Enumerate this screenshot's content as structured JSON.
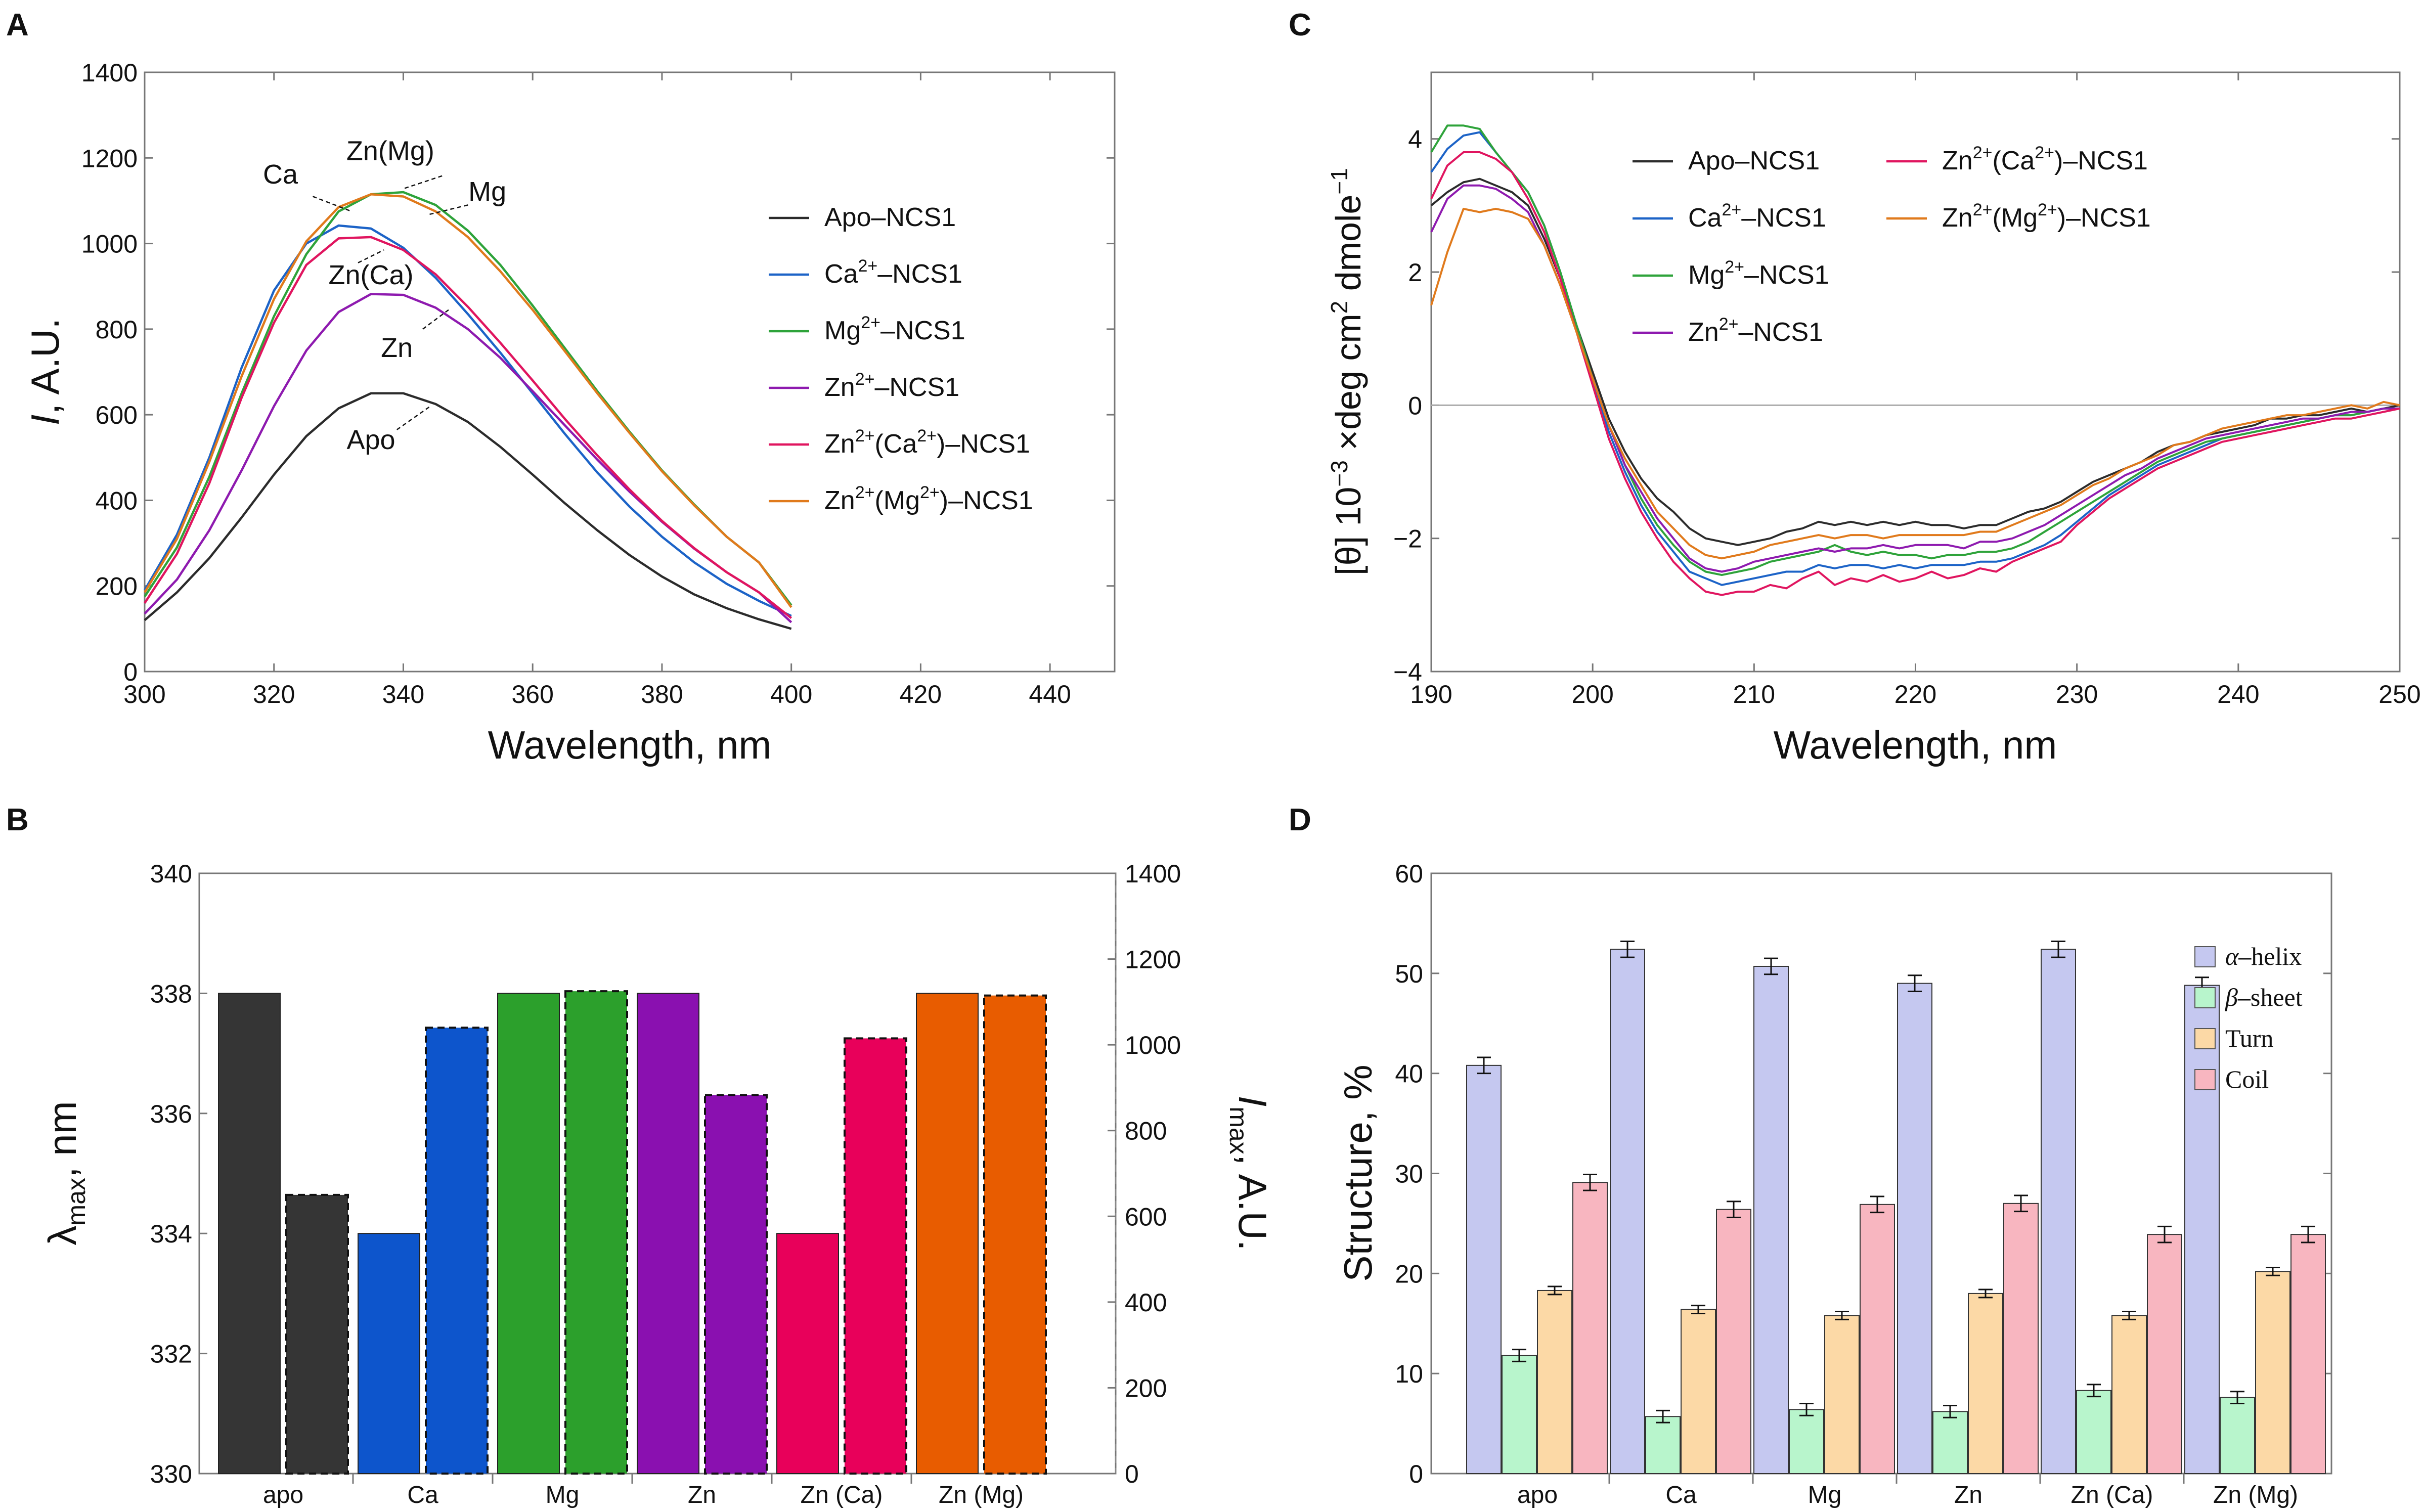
{
  "colors": {
    "apo": "#2b2b2b",
    "ca": "#1c63c7",
    "mg": "#2ea33a",
    "zn": "#8e1aaf",
    "zn_ca": "#e0155f",
    "zn_mg": "#e07a1c",
    "bar_apo": "#353535",
    "bar_ca": "#0d55cc",
    "bar_mg": "#2ca02c",
    "bar_zn": "#8a10b0",
    "bar_zn_ca": "#e8005a",
    "bar_zn_mg": "#e85c00",
    "helix": "#c5c8f0",
    "sheet": "#b8f5cc",
    "turn": "#fcd9a6",
    "coil": "#f8b6c0"
  },
  "chart_data": [
    {
      "panel": "A",
      "type": "line",
      "xlabel": "Wavelength, nm",
      "ylabel_italic": "I",
      "ylabel_rest": ", A.U.",
      "xlim": [
        300,
        450
      ],
      "ylim": [
        0,
        1400
      ],
      "xticks": [
        "300",
        "320",
        "340",
        "360",
        "380",
        "400",
        "420",
        "440"
      ],
      "yticks": [
        "0",
        "200",
        "400",
        "600",
        "800",
        "1000",
        "1200",
        "1400"
      ],
      "xtick_values": [
        300,
        320,
        340,
        360,
        380,
        400,
        420,
        440
      ],
      "ytick_values": [
        0,
        200,
        400,
        600,
        800,
        1000,
        1200,
        1400
      ],
      "x": [
        300,
        305,
        310,
        315,
        320,
        325,
        330,
        335,
        340,
        345,
        350,
        355,
        360,
        365,
        370,
        375,
        380,
        385,
        390,
        395,
        400
      ],
      "series": [
        {
          "key": "apo",
          "legend_main": "Apo–NCS1",
          "values": [
            120,
            185,
            265,
            360,
            460,
            550,
            615,
            650,
            650,
            625,
            583,
            525,
            460,
            393,
            330,
            272,
            222,
            180,
            148,
            122,
            100
          ]
        },
        {
          "key": "ca",
          "legend_pre": "Ca",
          "legend_sup": "2+",
          "legend_post": "–NCS1",
          "values": [
            190,
            320,
            500,
            710,
            890,
            1000,
            1042,
            1035,
            990,
            920,
            835,
            745,
            650,
            555,
            465,
            385,
            315,
            255,
            205,
            165,
            130
          ]
        },
        {
          "key": "mg",
          "legend_pre": "Mg",
          "legend_sup": "2+",
          "legend_post": "–NCS1",
          "values": [
            175,
            290,
            455,
            650,
            830,
            975,
            1075,
            1115,
            1120,
            1090,
            1030,
            950,
            855,
            755,
            655,
            560,
            470,
            390,
            315,
            255,
            155
          ]
        },
        {
          "key": "zn",
          "legend_pre": "Zn",
          "legend_sup": "2+",
          "legend_post": "–NCS1",
          "values": [
            135,
            215,
            330,
            470,
            620,
            750,
            840,
            882,
            880,
            850,
            800,
            733,
            655,
            575,
            495,
            420,
            350,
            287,
            232,
            185,
            115
          ]
        },
        {
          "key": "zn_ca",
          "legend_pre": "Zn",
          "legend_sup": "2+",
          "legend_mid": "(Ca",
          "legend_sup2": "2+",
          "legend_post": ")–NCS1",
          "values": [
            160,
            275,
            440,
            640,
            815,
            950,
            1012,
            1015,
            985,
            928,
            852,
            768,
            680,
            590,
            505,
            425,
            352,
            288,
            232,
            185,
            125
          ]
        },
        {
          "key": "zn_mg",
          "legend_pre": "Zn",
          "legend_sup": "2+",
          "legend_mid": "(Mg",
          "legend_sup2": "2+",
          "legend_post": ")–NCS1",
          "values": [
            185,
            310,
            490,
            690,
            870,
            1005,
            1085,
            1115,
            1110,
            1075,
            1015,
            935,
            845,
            748,
            650,
            557,
            468,
            388,
            315,
            255,
            150
          ]
        }
      ],
      "annotations": [
        {
          "text": "Zn(Mg)"
        },
        {
          "text": "Mg"
        },
        {
          "text": "Ca"
        },
        {
          "text": "Zn(Ca)"
        },
        {
          "text": "Zn"
        },
        {
          "text": "Apo"
        }
      ]
    },
    {
      "panel": "C",
      "type": "line",
      "xlabel": "Wavelength, nm",
      "ylabel_parts": [
        "[θ] 10",
        "−3",
        " ×deg cm",
        "2",
        " dmole",
        "−1"
      ],
      "xlim": [
        190,
        250
      ],
      "ylim": [
        -4,
        5
      ],
      "xticks": [
        "190",
        "200",
        "210",
        "220",
        "230",
        "240",
        "250"
      ],
      "yticks": [
        "−4",
        "−2",
        "0",
        "2",
        "4"
      ],
      "xtick_values": [
        190,
        200,
        210,
        220,
        230,
        240,
        250
      ],
      "ytick_values": [
        -4,
        -2,
        0,
        2,
        4
      ],
      "x": [
        190,
        191,
        192,
        193,
        194,
        195,
        196,
        197,
        198,
        199,
        200,
        201,
        202,
        203,
        204,
        205,
        206,
        207,
        208,
        209,
        210,
        211,
        212,
        213,
        214,
        215,
        216,
        217,
        218,
        219,
        220,
        221,
        222,
        223,
        224,
        225,
        226,
        227,
        228,
        229,
        230,
        231,
        232,
        233,
        234,
        235,
        236,
        237,
        238,
        239,
        240,
        241,
        242,
        243,
        244,
        245,
        246,
        247,
        248,
        249,
        250
      ],
      "series": [
        {
          "key": "apo",
          "legend_main": "Apo–NCS1",
          "values": [
            3.0,
            3.2,
            3.35,
            3.4,
            3.3,
            3.2,
            3.0,
            2.5,
            1.9,
            1.2,
            0.5,
            -0.2,
            -0.7,
            -1.1,
            -1.4,
            -1.6,
            -1.85,
            -2.0,
            -2.05,
            -2.1,
            -2.05,
            -2.0,
            -1.9,
            -1.85,
            -1.75,
            -1.8,
            -1.75,
            -1.8,
            -1.75,
            -1.8,
            -1.75,
            -1.8,
            -1.8,
            -1.85,
            -1.8,
            -1.8,
            -1.7,
            -1.6,
            -1.55,
            -1.45,
            -1.3,
            -1.15,
            -1.05,
            -0.95,
            -0.85,
            -0.7,
            -0.6,
            -0.55,
            -0.45,
            -0.4,
            -0.35,
            -0.3,
            -0.2,
            -0.2,
            -0.15,
            -0.15,
            -0.1,
            -0.05,
            -0.1,
            -0.05,
            0.0
          ]
        },
        {
          "key": "ca",
          "legend_pre": "Ca",
          "legend_sup": "2+",
          "legend_post": "–NCS1",
          "values": [
            3.5,
            3.85,
            4.05,
            4.1,
            3.8,
            3.5,
            3.2,
            2.7,
            2.0,
            1.2,
            0.4,
            -0.4,
            -1.0,
            -1.5,
            -1.9,
            -2.2,
            -2.5,
            -2.6,
            -2.7,
            -2.65,
            -2.6,
            -2.55,
            -2.5,
            -2.5,
            -2.4,
            -2.45,
            -2.4,
            -2.4,
            -2.45,
            -2.4,
            -2.45,
            -2.4,
            -2.4,
            -2.4,
            -2.35,
            -2.35,
            -2.3,
            -2.2,
            -2.1,
            -1.95,
            -1.75,
            -1.55,
            -1.35,
            -1.2,
            -1.05,
            -0.9,
            -0.8,
            -0.7,
            -0.6,
            -0.5,
            -0.45,
            -0.4,
            -0.35,
            -0.3,
            -0.25,
            -0.2,
            -0.15,
            -0.15,
            -0.1,
            -0.05,
            -0.05
          ]
        },
        {
          "key": "mg",
          "legend_pre": "Mg",
          "legend_sup": "2+",
          "legend_post": "–NCS1",
          "values": [
            3.8,
            4.2,
            4.2,
            4.15,
            3.8,
            3.5,
            3.2,
            2.7,
            2.0,
            1.2,
            0.4,
            -0.3,
            -0.9,
            -1.4,
            -1.8,
            -2.1,
            -2.35,
            -2.5,
            -2.55,
            -2.5,
            -2.45,
            -2.35,
            -2.3,
            -2.25,
            -2.2,
            -2.1,
            -2.2,
            -2.25,
            -2.2,
            -2.25,
            -2.25,
            -2.3,
            -2.25,
            -2.25,
            -2.2,
            -2.2,
            -2.15,
            -2.05,
            -1.9,
            -1.75,
            -1.6,
            -1.45,
            -1.3,
            -1.15,
            -1.0,
            -0.85,
            -0.75,
            -0.65,
            -0.55,
            -0.5,
            -0.45,
            -0.4,
            -0.35,
            -0.3,
            -0.25,
            -0.2,
            -0.15,
            -0.15,
            -0.1,
            -0.05,
            -0.05
          ]
        },
        {
          "key": "zn",
          "legend_pre": "Zn",
          "legend_sup": "2+",
          "legend_post": "–NCS1",
          "values": [
            2.6,
            3.1,
            3.3,
            3.3,
            3.25,
            3.1,
            2.9,
            2.4,
            1.8,
            1.1,
            0.4,
            -0.3,
            -0.9,
            -1.3,
            -1.7,
            -2.0,
            -2.3,
            -2.45,
            -2.5,
            -2.45,
            -2.35,
            -2.3,
            -2.25,
            -2.2,
            -2.15,
            -2.2,
            -2.15,
            -2.15,
            -2.1,
            -2.15,
            -2.1,
            -2.1,
            -2.1,
            -2.15,
            -2.05,
            -2.05,
            -2.0,
            -1.9,
            -1.8,
            -1.65,
            -1.5,
            -1.35,
            -1.2,
            -1.05,
            -0.95,
            -0.8,
            -0.7,
            -0.6,
            -0.5,
            -0.45,
            -0.4,
            -0.35,
            -0.3,
            -0.25,
            -0.2,
            -0.2,
            -0.15,
            -0.1,
            -0.1,
            -0.05,
            -0.05
          ]
        },
        {
          "key": "zn_ca",
          "legend_pre": "Zn",
          "legend_sup": "2+",
          "legend_mid": "(Ca",
          "legend_sup2": "2+",
          "legend_post": ")–NCS1",
          "values": [
            3.1,
            3.6,
            3.8,
            3.8,
            3.7,
            3.5,
            3.1,
            2.6,
            1.9,
            1.1,
            0.3,
            -0.5,
            -1.1,
            -1.6,
            -2.0,
            -2.35,
            -2.6,
            -2.8,
            -2.85,
            -2.8,
            -2.8,
            -2.7,
            -2.75,
            -2.6,
            -2.5,
            -2.7,
            -2.6,
            -2.65,
            -2.55,
            -2.65,
            -2.6,
            -2.5,
            -2.6,
            -2.55,
            -2.45,
            -2.5,
            -2.35,
            -2.25,
            -2.15,
            -2.05,
            -1.8,
            -1.6,
            -1.4,
            -1.25,
            -1.1,
            -0.95,
            -0.85,
            -0.75,
            -0.65,
            -0.55,
            -0.5,
            -0.45,
            -0.4,
            -0.35,
            -0.3,
            -0.25,
            -0.2,
            -0.2,
            -0.15,
            -0.1,
            -0.05
          ]
        },
        {
          "key": "zn_mg",
          "legend_pre": "Zn",
          "legend_sup": "2+",
          "legend_mid": "(Mg",
          "legend_sup2": "2+",
          "legend_post": ")–NCS1",
          "values": [
            1.5,
            2.3,
            2.95,
            2.9,
            2.95,
            2.9,
            2.8,
            2.4,
            1.8,
            1.1,
            0.4,
            -0.3,
            -0.8,
            -1.2,
            -1.6,
            -1.85,
            -2.1,
            -2.25,
            -2.3,
            -2.25,
            -2.2,
            -2.1,
            -2.05,
            -2.0,
            -1.95,
            -2.0,
            -1.95,
            -1.95,
            -2.0,
            -1.95,
            -1.95,
            -1.95,
            -1.95,
            -1.95,
            -1.9,
            -1.9,
            -1.8,
            -1.7,
            -1.6,
            -1.5,
            -1.35,
            -1.2,
            -1.1,
            -0.95,
            -0.85,
            -0.75,
            -0.6,
            -0.55,
            -0.45,
            -0.35,
            -0.3,
            -0.25,
            -0.2,
            -0.15,
            -0.15,
            -0.1,
            -0.05,
            0.0,
            -0.05,
            0.05,
            0.0
          ]
        }
      ]
    },
    {
      "panel": "B",
      "type": "bar",
      "categories": [
        "apo",
        "Ca",
        "Mg",
        "Zn",
        "Zn (Ca)",
        "Zn (Mg)"
      ],
      "keys": [
        "bar_apo",
        "bar_ca",
        "bar_mg",
        "bar_zn",
        "bar_zn_ca",
        "bar_zn_mg"
      ],
      "lambda_max": [
        338,
        334,
        338,
        338,
        334,
        338
      ],
      "i_max": [
        650,
        1040,
        1125,
        883,
        1015,
        1115
      ],
      "ylim_left": [
        330,
        340
      ],
      "ylim_right": [
        0,
        1400
      ],
      "yticks_left": [
        "330",
        "332",
        "334",
        "336",
        "338",
        "340"
      ],
      "yticks_left_values": [
        330,
        332,
        334,
        336,
        338,
        340
      ],
      "yticks_right": [
        "0",
        "200",
        "400",
        "600",
        "800",
        "1000",
        "1200",
        "1400"
      ],
      "yticks_right_values": [
        0,
        200,
        400,
        600,
        800,
        1000,
        1200,
        1400
      ],
      "ylabel_left": {
        "main": "λ",
        "sub": "max",
        "rest": ", nm"
      },
      "ylabel_right": {
        "main": "I",
        "sub": "max",
        "rest": ", A.U."
      }
    },
    {
      "panel": "D",
      "type": "bar",
      "categories": [
        "apo",
        "Ca",
        "Mg",
        "Zn",
        "Zn (Ca)",
        "Zn (Mg)"
      ],
      "ylabel": "Structure, %",
      "ylim": [
        0,
        60
      ],
      "yticks": [
        "0",
        "10",
        "20",
        "30",
        "40",
        "50",
        "60"
      ],
      "ytick_values": [
        0,
        10,
        20,
        30,
        40,
        50,
        60
      ],
      "series": [
        {
          "key": "helix",
          "legend_greek": "α",
          "legend_rest": "–helix",
          "values": [
            40.8,
            52.4,
            50.7,
            49.0,
            52.4,
            48.8
          ],
          "errors": [
            0.8,
            0.8,
            0.8,
            0.8,
            0.8,
            0.8
          ]
        },
        {
          "key": "sheet",
          "legend_greek": "β",
          "legend_rest": "–sheet",
          "values": [
            11.8,
            5.7,
            6.4,
            6.2,
            8.3,
            7.6
          ],
          "errors": [
            0.6,
            0.6,
            0.6,
            0.6,
            0.6,
            0.6
          ]
        },
        {
          "key": "turn",
          "legend_greek": "",
          "legend_rest": "Turn",
          "values": [
            18.3,
            16.4,
            15.8,
            18.0,
            15.8,
            20.2
          ],
          "errors": [
            0.4,
            0.4,
            0.4,
            0.4,
            0.4,
            0.4
          ]
        },
        {
          "key": "coil",
          "legend_greek": "",
          "legend_rest": "Coil",
          "values": [
            29.1,
            26.4,
            26.9,
            27.0,
            23.9,
            23.9
          ],
          "errors": [
            0.8,
            0.8,
            0.8,
            0.8,
            0.8,
            0.8
          ]
        }
      ]
    }
  ],
  "panel_labels": [
    "A",
    "B",
    "C",
    "D"
  ]
}
